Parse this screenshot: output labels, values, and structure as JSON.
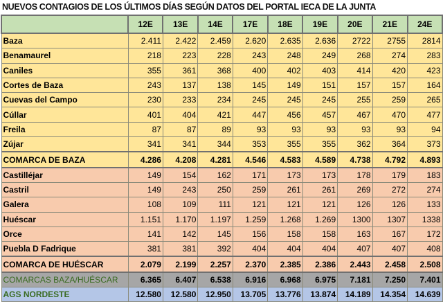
{
  "title": "NUEVOS CONTAGIOS DE LOS ÚLTIMOS DÍAS SEGÚN DATOS DEL PORTAL IECA DE LA JUNTA",
  "columns": [
    "12E",
    "13E",
    "14E",
    "17E",
    "18E",
    "19E",
    "20E",
    "21E",
    "24E"
  ],
  "rows": [
    {
      "name": "Baza",
      "group": "baza",
      "values": [
        "2.411",
        "2.422",
        "2.459",
        "2.620",
        "2.635",
        "2.636",
        "2722",
        "2755",
        "2814"
      ]
    },
    {
      "name": "Benamaurel",
      "group": "baza",
      "values": [
        "218",
        "223",
        "228",
        "243",
        "248",
        "249",
        "268",
        "274",
        "283"
      ]
    },
    {
      "name": "Caniles",
      "group": "baza",
      "values": [
        "355",
        "361",
        "368",
        "400",
        "402",
        "403",
        "414",
        "420",
        "423"
      ]
    },
    {
      "name": "Cortes de Baza",
      "group": "baza",
      "values": [
        "243",
        "137",
        "138",
        "145",
        "149",
        "151",
        "157",
        "157",
        "164"
      ]
    },
    {
      "name": "Cuevas del Campo",
      "group": "baza",
      "values": [
        "230",
        "233",
        "234",
        "245",
        "245",
        "245",
        "255",
        "259",
        "265"
      ]
    },
    {
      "name": "Cúllar",
      "group": "baza",
      "values": [
        "401",
        "404",
        "421",
        "447",
        "456",
        "457",
        "467",
        "470",
        "477"
      ]
    },
    {
      "name": "Freila",
      "group": "baza",
      "values": [
        "87",
        "87",
        "89",
        "93",
        "93",
        "93",
        "93",
        "93",
        "94"
      ]
    },
    {
      "name": "Zújar",
      "group": "baza",
      "values": [
        "341",
        "341",
        "344",
        "353",
        "355",
        "355",
        "362",
        "364",
        "373"
      ]
    },
    {
      "name": "COMARCA DE BAZA",
      "group": "baza tot",
      "values": [
        "4.286",
        "4.208",
        "4.281",
        "4.546",
        "4.583",
        "4.589",
        "4.738",
        "4.792",
        "4.893"
      ]
    },
    {
      "name": "Castilléjar",
      "group": "hues",
      "values": [
        "149",
        "154",
        "162",
        "171",
        "173",
        "173",
        "178",
        "179",
        "183"
      ]
    },
    {
      "name": "Castril",
      "group": "hues",
      "values": [
        "149",
        "243",
        "250",
        "259",
        "261",
        "261",
        "269",
        "272",
        "274"
      ]
    },
    {
      "name": "Galera",
      "group": "hues",
      "values": [
        "108",
        "109",
        "111",
        "121",
        "121",
        "121",
        "126",
        "126",
        "133"
      ]
    },
    {
      "name": "Huéscar",
      "group": "hues",
      "values": [
        "1.151",
        "1.170",
        "1.197",
        "1.259",
        "1.268",
        "1.269",
        "1300",
        "1307",
        "1338"
      ]
    },
    {
      "name": "Orce",
      "group": "hues",
      "values": [
        "141",
        "142",
        "145",
        "156",
        "158",
        "158",
        "163",
        "167",
        "172"
      ]
    },
    {
      "name": "Puebla D Fadrique",
      "group": "hues",
      "values": [
        "381",
        "381",
        "392",
        "404",
        "404",
        "404",
        "407",
        "407",
        "408"
      ]
    },
    {
      "name": "COMARCA DE HUÉSCAR",
      "group": "hues tot",
      "values": [
        "2.079",
        "2.199",
        "2.257",
        "2.370",
        "2.385",
        "2.386",
        "2.443",
        "2.458",
        "2.508"
      ]
    },
    {
      "name": "COMARCAS BAZA/HUÉSCAR",
      "group": "both",
      "values": [
        "6.365",
        "6.407",
        "6.538",
        "6.916",
        "6.968",
        "6.975",
        "7.181",
        "7.250",
        "7.401"
      ]
    },
    {
      "name": "AGS NORDESTE",
      "group": "ags",
      "values": [
        "12.580",
        "12.580",
        "12.950",
        "13.705",
        "13.776",
        "13.874",
        "14.189",
        "14.354",
        "14.639"
      ]
    }
  ]
}
